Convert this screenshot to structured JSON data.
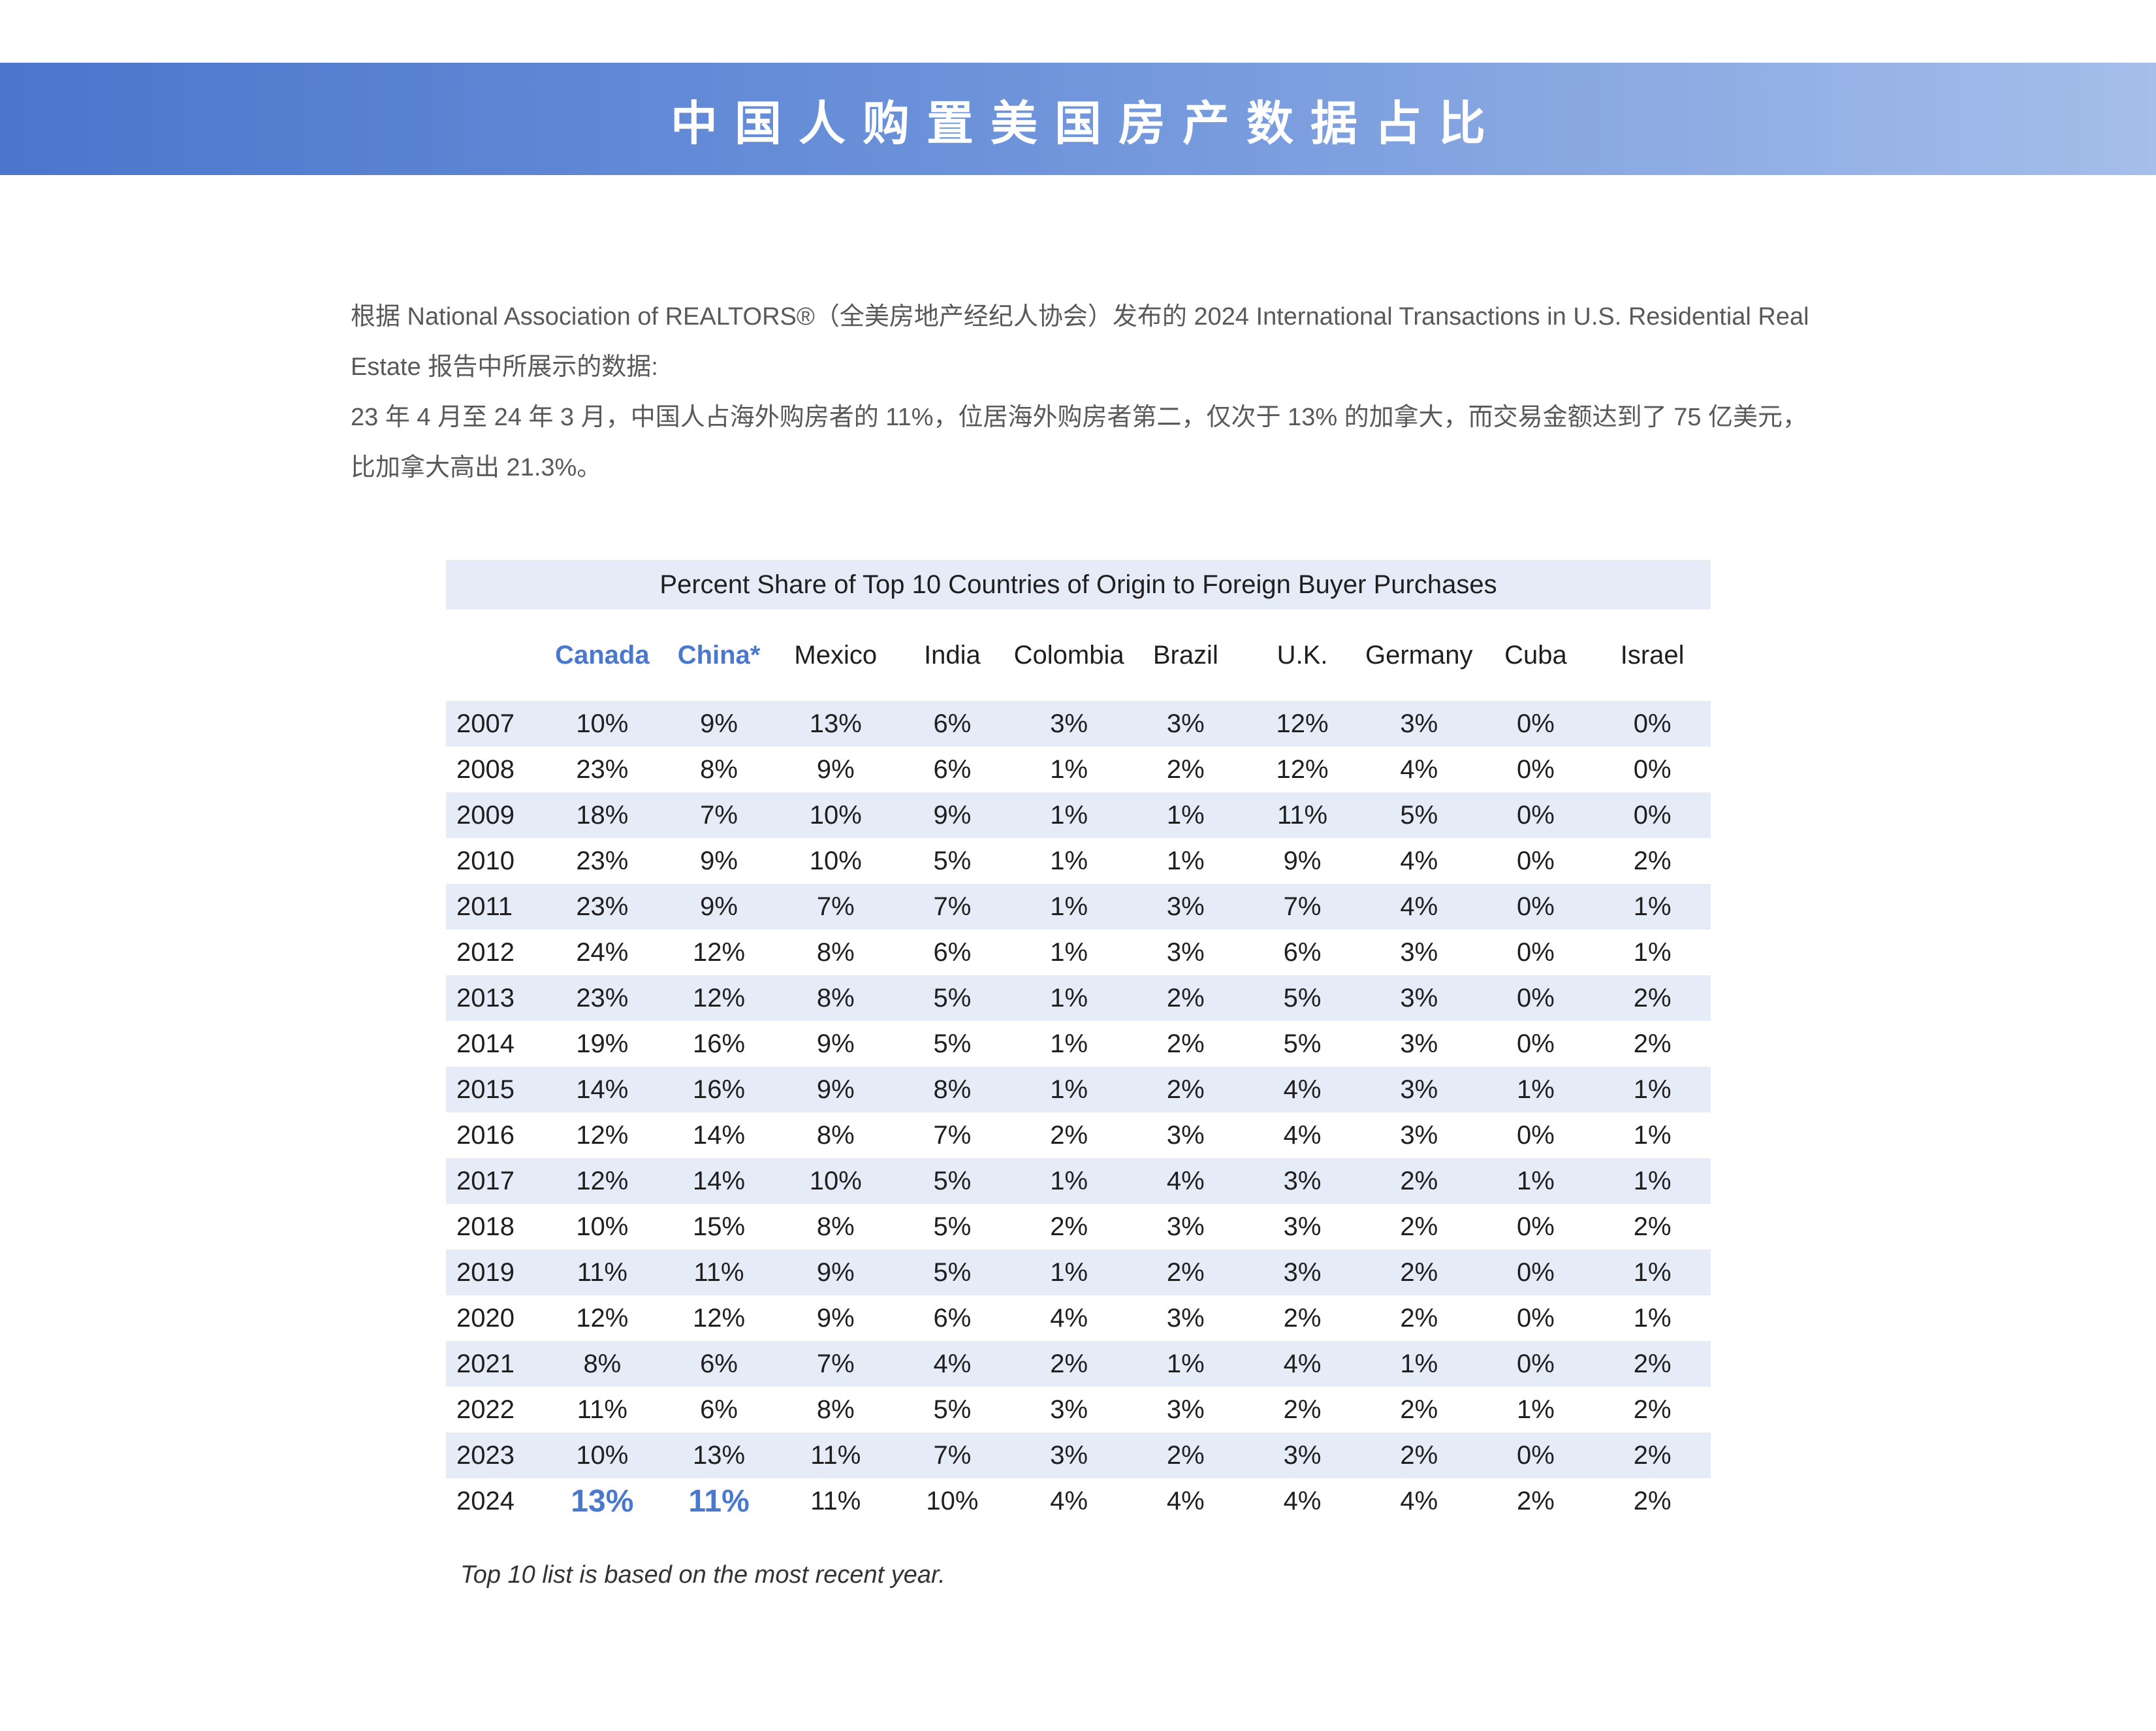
{
  "banner": {
    "title": "中国人购置美国房产数据占比",
    "gradient_left": "#4B76CC",
    "gradient_right": "#A5BEEA",
    "text_color": "#FFFFFF"
  },
  "intro": {
    "paragraph1": "根据 National Association of REALTORS®（全美房地产经纪人协会）发布的 2024 International Transactions in U.S. Residential Real Estate 报告中所展示的数据:",
    "paragraph2": "23 年 4 月至 24 年 3 月，中国人占海外购房者的 11%，位居海外购房者第二，仅次于 13% 的加拿大，而交易金额达到了 75 亿美元，比加拿大高出 21.3%。"
  },
  "table": {
    "title": "Percent Share of Top 10 Countries of Origin to Foreign Buyer Purchases",
    "accent_color": "#4A78CE",
    "stripe_color": "#E5EBF7",
    "columns": [
      "Canada",
      "China*",
      "Mexico",
      "India",
      "Colombia",
      "Brazil",
      "U.K.",
      "Germany",
      "Cuba",
      "Israel"
    ],
    "accent_column_indexes": [
      0,
      1
    ],
    "rows": [
      {
        "year": "2007",
        "values": [
          "10%",
          "9%",
          "13%",
          "6%",
          "3%",
          "3%",
          "12%",
          "3%",
          "0%",
          "0%"
        ]
      },
      {
        "year": "2008",
        "values": [
          "23%",
          "8%",
          "9%",
          "6%",
          "1%",
          "2%",
          "12%",
          "4%",
          "0%",
          "0%"
        ]
      },
      {
        "year": "2009",
        "values": [
          "18%",
          "7%",
          "10%",
          "9%",
          "1%",
          "1%",
          "11%",
          "5%",
          "0%",
          "0%"
        ]
      },
      {
        "year": "2010",
        "values": [
          "23%",
          "9%",
          "10%",
          "5%",
          "1%",
          "1%",
          "9%",
          "4%",
          "0%",
          "2%"
        ]
      },
      {
        "year": "2011",
        "values": [
          "23%",
          "9%",
          "7%",
          "7%",
          "1%",
          "3%",
          "7%",
          "4%",
          "0%",
          "1%"
        ]
      },
      {
        "year": "2012",
        "values": [
          "24%",
          "12%",
          "8%",
          "6%",
          "1%",
          "3%",
          "6%",
          "3%",
          "0%",
          "1%"
        ]
      },
      {
        "year": "2013",
        "values": [
          "23%",
          "12%",
          "8%",
          "5%",
          "1%",
          "2%",
          "5%",
          "3%",
          "0%",
          "2%"
        ]
      },
      {
        "year": "2014",
        "values": [
          "19%",
          "16%",
          "9%",
          "5%",
          "1%",
          "2%",
          "5%",
          "3%",
          "0%",
          "2%"
        ]
      },
      {
        "year": "2015",
        "values": [
          "14%",
          "16%",
          "9%",
          "8%",
          "1%",
          "2%",
          "4%",
          "3%",
          "1%",
          "1%"
        ]
      },
      {
        "year": "2016",
        "values": [
          "12%",
          "14%",
          "8%",
          "7%",
          "2%",
          "3%",
          "4%",
          "3%",
          "0%",
          "1%"
        ]
      },
      {
        "year": "2017",
        "values": [
          "12%",
          "14%",
          "10%",
          "5%",
          "1%",
          "4%",
          "3%",
          "2%",
          "1%",
          "1%"
        ]
      },
      {
        "year": "2018",
        "values": [
          "10%",
          "15%",
          "8%",
          "5%",
          "2%",
          "3%",
          "3%",
          "2%",
          "0%",
          "2%"
        ]
      },
      {
        "year": "2019",
        "values": [
          "11%",
          "11%",
          "9%",
          "5%",
          "1%",
          "2%",
          "3%",
          "2%",
          "0%",
          "1%"
        ]
      },
      {
        "year": "2020",
        "values": [
          "12%",
          "12%",
          "9%",
          "6%",
          "4%",
          "3%",
          "2%",
          "2%",
          "0%",
          "1%"
        ]
      },
      {
        "year": "2021",
        "values": [
          "8%",
          "6%",
          "7%",
          "4%",
          "2%",
          "1%",
          "4%",
          "1%",
          "0%",
          "2%"
        ]
      },
      {
        "year": "2022",
        "values": [
          "11%",
          "6%",
          "8%",
          "5%",
          "3%",
          "3%",
          "2%",
          "2%",
          "1%",
          "2%"
        ]
      },
      {
        "year": "2023",
        "values": [
          "10%",
          "13%",
          "11%",
          "7%",
          "3%",
          "2%",
          "3%",
          "2%",
          "0%",
          "2%"
        ]
      },
      {
        "year": "2024",
        "values": [
          "13%",
          "11%",
          "11%",
          "10%",
          "4%",
          "4%",
          "4%",
          "4%",
          "2%",
          "2%"
        ]
      }
    ],
    "highlight_row_year": "2024",
    "highlight_value_indexes": [
      0,
      1
    ],
    "footnote": "Top 10 list is based on the most recent year."
  }
}
